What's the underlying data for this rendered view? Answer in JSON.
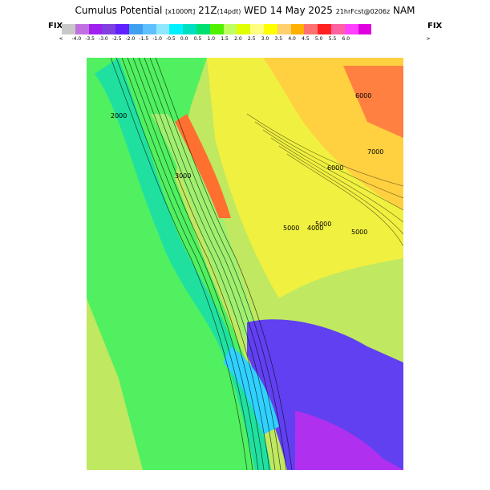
{
  "header": {
    "title_main": "Cumulus Potential",
    "title_units": "[x1000ft]",
    "title_time": "21Z",
    "title_pdt": "(14pdt)",
    "title_date": "WED 14 May 2025",
    "title_run": "21hrFcst@0206z",
    "title_model": "NAM"
  },
  "colorbar": {
    "fix_left": "FIX",
    "fix_right": "FIX",
    "lt_symbol": "<",
    "gt_symbol": ">",
    "colors": [
      "#c8c8c8",
      "#c070e0",
      "#a020f0",
      "#8040e0",
      "#6020ff",
      "#40a0f0",
      "#60c0ff",
      "#90e8ff",
      "#00f0ff",
      "#00e0c0",
      "#00e070",
      "#50f000",
      "#c0ff60",
      "#e0ff00",
      "#ffff80",
      "#ffff00",
      "#ffd070",
      "#ffb000",
      "#ff7070",
      "#ff2020",
      "#ff60a0",
      "#ff40ff",
      "#e000e0"
    ],
    "labels": [
      "-4.0",
      "-3.5",
      "-3.0",
      "-2.5",
      "-2.0",
      "-1.5",
      "-1.0",
      "-0.5",
      "0.0",
      "0.5",
      "1.0",
      "1.5",
      "2.0",
      "2.5",
      "3.0",
      "3.5",
      "4.0",
      "4.5",
      "5.0",
      "5.5",
      "6.0"
    ]
  },
  "map": {
    "contour_labels": [
      "2000",
      "3000",
      "4000",
      "5000",
      "6000",
      "6000",
      "5000",
      "5000",
      "7000"
    ],
    "palette": {
      "ocean_far": "#c0e860",
      "ocean_near": "#50f060",
      "coast": "#20e0a0",
      "valley": "#a0f070",
      "sierra_low": "#f0f040",
      "sierra_high": "#ff7030",
      "desert_high": "#ffd040",
      "desert_low": "#6040f0",
      "desert_lowest": "#b030f0",
      "cyan": "#30d0ff",
      "contour": "#000000"
    }
  }
}
